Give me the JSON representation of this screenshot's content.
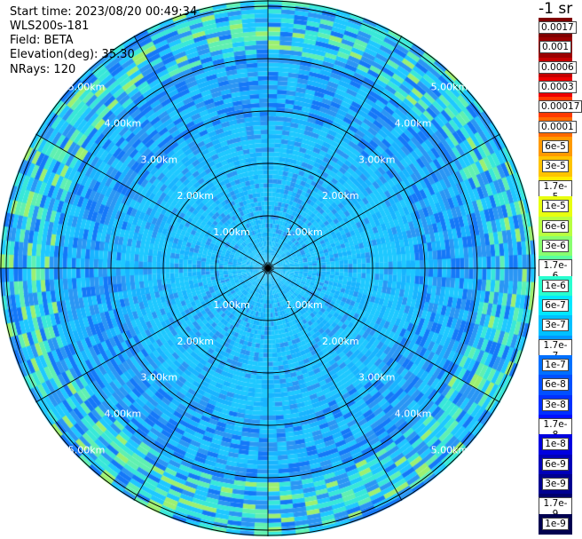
{
  "header": {
    "start_time": "Start time: 2023/08/20 00:49:34",
    "instrument": "WLS200s-181",
    "field": "Field: BETA",
    "elevation": "Elevation(deg): 35.30",
    "nrays": "NRays: 120"
  },
  "colorbar": {
    "unit": "-1 sr",
    "labels": [
      "0.0017",
      "0.001",
      "0.0006",
      "0.0003",
      "0.00017",
      "0.0001",
      "6e-5",
      "3e-5",
      "1.7e-5",
      "1e-5",
      "6e-6",
      "3e-6",
      "1.7e-6",
      "1e-6",
      "6e-7",
      "3e-7",
      "1.7e-7",
      "1e-7",
      "6e-8",
      "3e-8",
      "1.7e-8",
      "1e-8",
      "6e-9",
      "3e-9",
      "1.7e-9",
      "1e-9"
    ],
    "colors": [
      "#7f0000",
      "#9a0000",
      "#c40000",
      "#ee0000",
      "#ff3a00",
      "#ff6a00",
      "#ff9a00",
      "#ffc400",
      "#ffec00",
      "#e8ff10",
      "#b8ff40",
      "#88ff70",
      "#58ffa0",
      "#28ffd0",
      "#00e8ff",
      "#00c0ff",
      "#0098ff",
      "#0070ff",
      "#0050ff",
      "#0030ff",
      "#0010ff",
      "#0000e0",
      "#0000b8",
      "#000090",
      "#00006c",
      "#000050"
    ]
  },
  "rings": {
    "labels": [
      "1.00km",
      "2.00km",
      "3.00km",
      "4.00km",
      "5.00km"
    ],
    "max_range_km": 5.1
  },
  "palette": {
    "field_colors": [
      "#1ec8ff",
      "#18b4ff",
      "#2a96f4",
      "#1478f8",
      "#38e8d8",
      "#60f0b0",
      "#9cf070"
    ]
  }
}
